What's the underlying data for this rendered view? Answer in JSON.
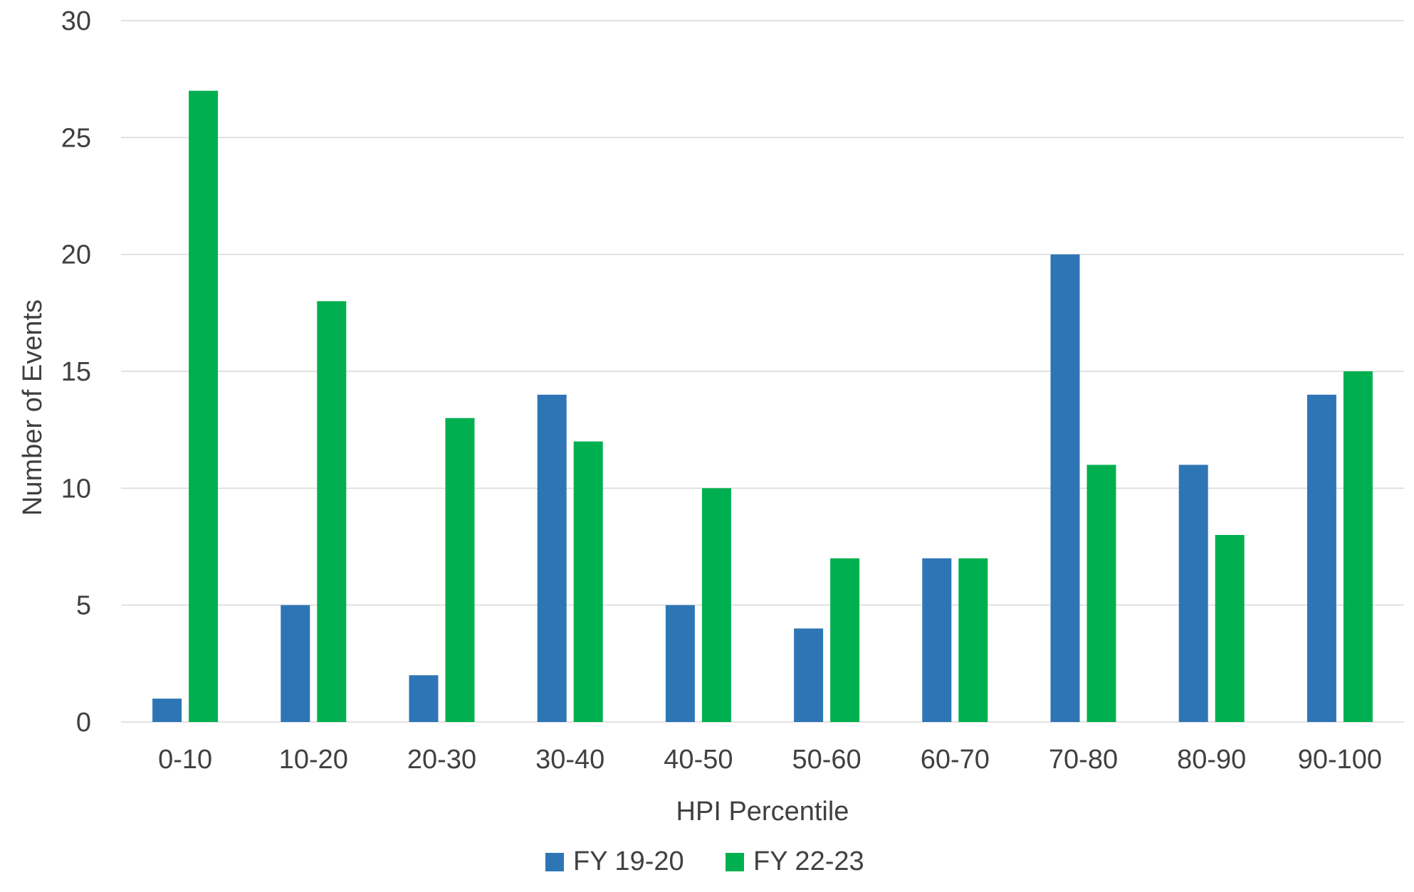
{
  "chart_data": {
    "type": "bar",
    "title": "",
    "xlabel": "HPI Percentile",
    "ylabel": "Number of Events",
    "ylim": [
      0,
      30
    ],
    "yticks": [
      0,
      5,
      10,
      15,
      20,
      25,
      30
    ],
    "grid": true,
    "legend_position": "bottom",
    "categories": [
      "0-10",
      "10-20",
      "20-30",
      "30-40",
      "40-50",
      "50-60",
      "60-70",
      "70-80",
      "80-90",
      "90-100"
    ],
    "series": [
      {
        "name": "FY 19-20",
        "color": "#2E75B6",
        "values": [
          1,
          5,
          2,
          14,
          5,
          4,
          7,
          20,
          11,
          14
        ]
      },
      {
        "name": "FY 22-23",
        "color": "#00B050",
        "values": [
          27,
          18,
          13,
          12,
          10,
          7,
          7,
          11,
          8,
          15
        ]
      }
    ]
  }
}
